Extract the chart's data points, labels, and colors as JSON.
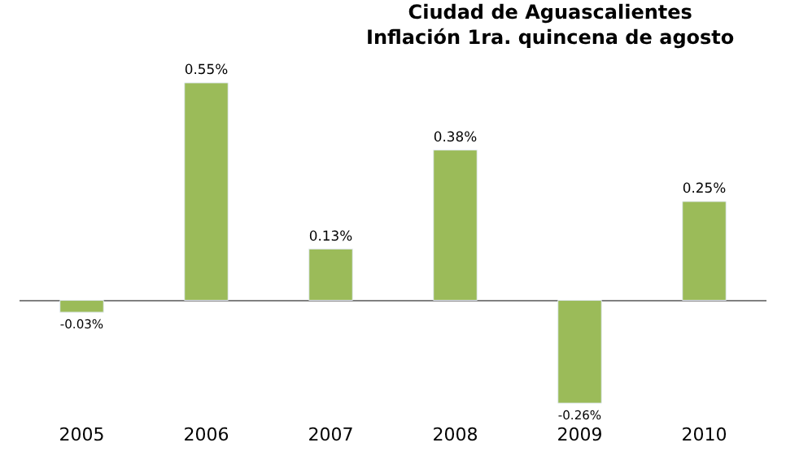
{
  "chart_data": {
    "type": "bar",
    "title": "Ciudad de Aguascalientes\nInflación 1ra. quincena de agosto",
    "categories": [
      "2005",
      "2006",
      "2007",
      "2008",
      "2009",
      "2010"
    ],
    "values": [
      -0.03,
      0.55,
      0.13,
      0.38,
      -0.26,
      0.25
    ],
    "value_labels": [
      "-0.03%",
      "0.55%",
      "0.13%",
      "0.38%",
      "-0.26%",
      "0.25%"
    ],
    "color": "#9bbb59"
  }
}
